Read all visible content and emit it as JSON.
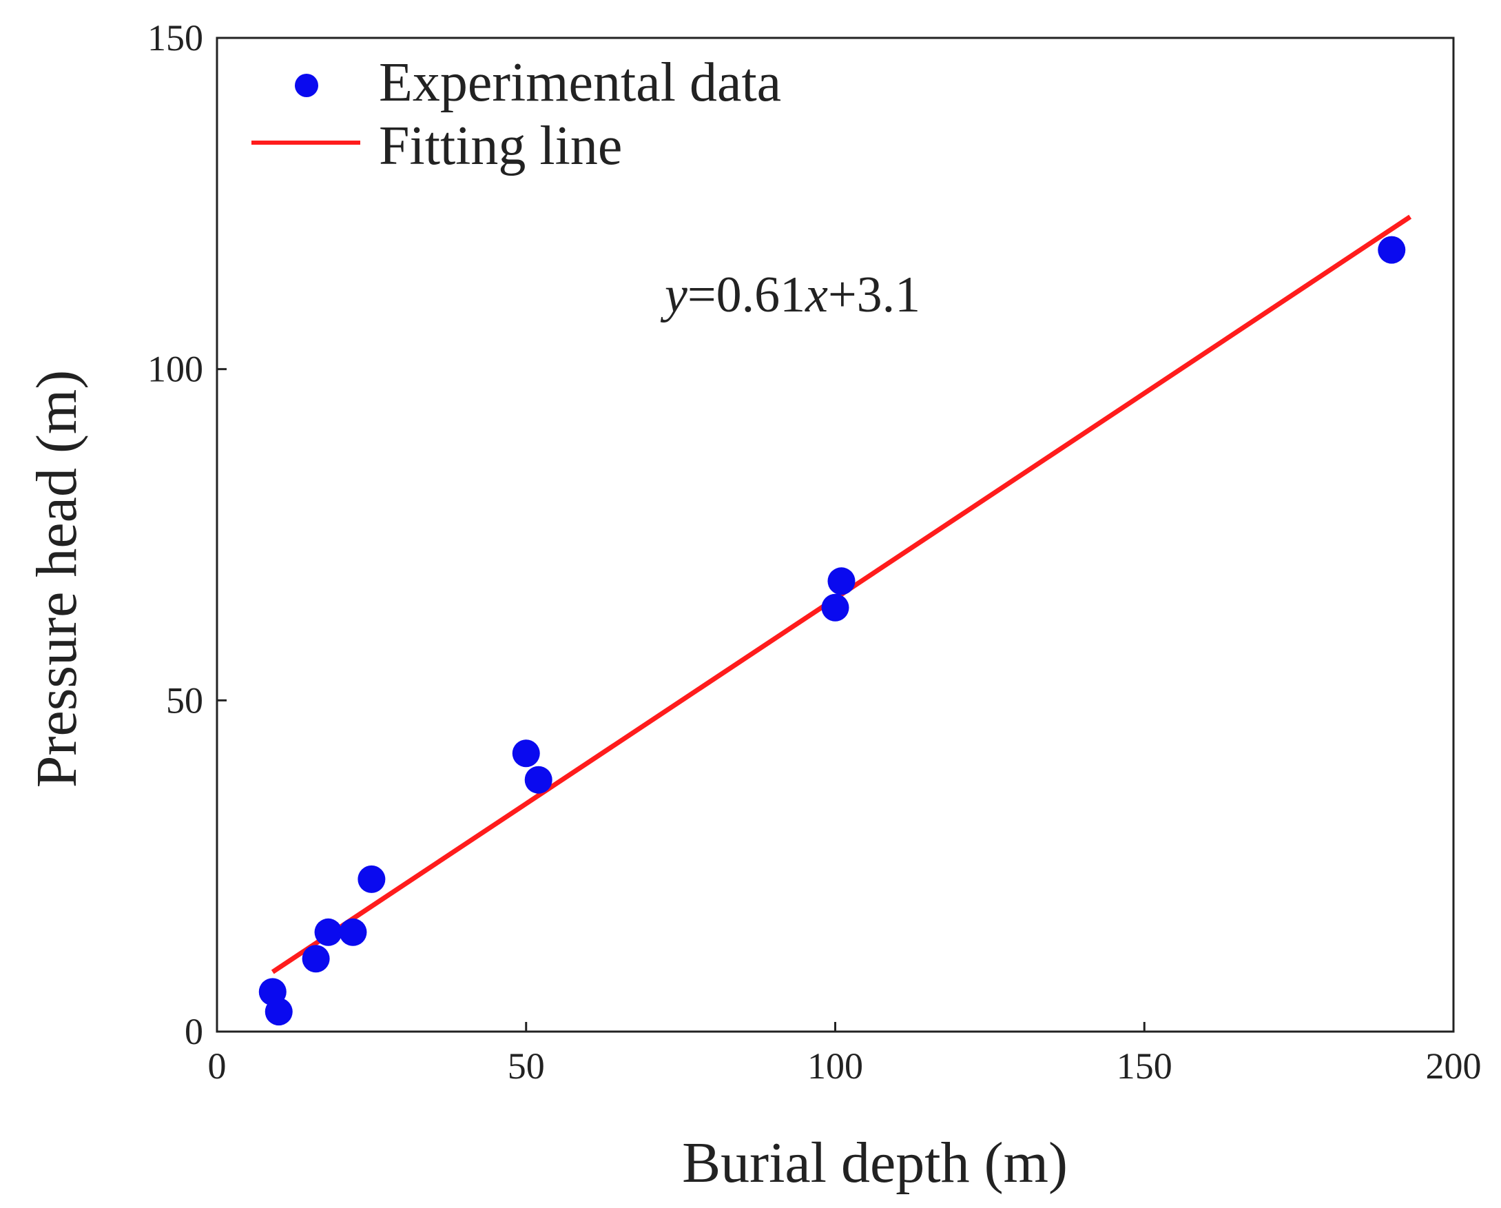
{
  "chart_data": {
    "type": "scatter",
    "title": "",
    "xlabel": "Burial depth  (m)",
    "ylabel": "Pressure head  (m)",
    "xlim": [
      0,
      200
    ],
    "ylim": [
      0,
      150
    ],
    "xticks": [
      "0",
      "50",
      "100",
      "150",
      "200"
    ],
    "yticks": [
      "0",
      "50",
      "100",
      "150"
    ],
    "grid": false,
    "legend_position": "top-left",
    "series": [
      {
        "name": "Experimental data",
        "type": "scatter",
        "color": "#0a0aef",
        "points": [
          {
            "x": 9,
            "y": 6
          },
          {
            "x": 10,
            "y": 3
          },
          {
            "x": 16,
            "y": 11
          },
          {
            "x": 18,
            "y": 15
          },
          {
            "x": 22,
            "y": 15
          },
          {
            "x": 25,
            "y": 23
          },
          {
            "x": 50,
            "y": 42
          },
          {
            "x": 52,
            "y": 38
          },
          {
            "x": 100,
            "y": 64
          },
          {
            "x": 101,
            "y": 68
          },
          {
            "x": 190,
            "y": 118
          }
        ]
      },
      {
        "name": "Fitting line",
        "type": "line",
        "color": "#ff1c1c",
        "points": [
          {
            "x": 9,
            "y": 9
          },
          {
            "x": 193,
            "y": 123
          }
        ]
      }
    ],
    "annotations": [
      {
        "text_var1": "y",
        "text_mid": "=0.61",
        "text_var2": "x",
        "text_end": "+3.1"
      }
    ]
  }
}
